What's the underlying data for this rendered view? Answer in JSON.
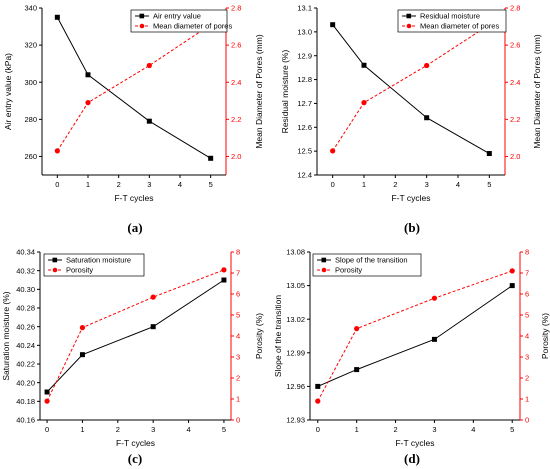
{
  "colors": {
    "primary": "#000000",
    "secondary": "#ff0000"
  },
  "chart_data": [
    {
      "type": "line",
      "panel_label": "(a)",
      "xlabel": "F-T cycles",
      "x": [
        0,
        1,
        3,
        5
      ],
      "xlim": [
        -0.5,
        5.5
      ],
      "xticks": [
        0,
        1,
        2,
        3,
        4,
        5
      ],
      "ylabel": "Air entry value (kPa)",
      "ylim": [
        250,
        340
      ],
      "yticks": [
        260,
        280,
        300,
        320,
        340
      ],
      "y_decimals": 0,
      "y2label": "Mean Diameter of Pores (mm)",
      "y2lim": [
        1.9,
        2.8
      ],
      "y2ticks": [
        2.0,
        2.2,
        2.4,
        2.6,
        2.8
      ],
      "y2_decimals": 1,
      "series": [
        {
          "name": "Air entry value",
          "axis": "left",
          "color": "#000000",
          "marker": "square",
          "dashed": false,
          "values": [
            335,
            304,
            279,
            259
          ]
        },
        {
          "name": "Mean diameter of pores",
          "axis": "right",
          "color": "#ff0000",
          "marker": "circle",
          "dashed": true,
          "values": [
            2.03,
            2.29,
            2.49,
            2.71
          ]
        }
      ],
      "legend": "top-right"
    },
    {
      "type": "line",
      "panel_label": "(b)",
      "xlabel": "F-T cycles",
      "x": [
        0,
        1,
        3,
        5
      ],
      "xlim": [
        -0.5,
        5.5
      ],
      "xticks": [
        0,
        1,
        2,
        3,
        4,
        5
      ],
      "ylabel": "Residual moisture (%)",
      "ylim": [
        12.4,
        13.1
      ],
      "yticks": [
        12.4,
        12.5,
        12.6,
        12.7,
        12.8,
        12.9,
        13.0,
        13.1
      ],
      "y_decimals": 1,
      "y2label": "Mean Diameter of Pores (mm)",
      "y2lim": [
        1.9,
        2.8
      ],
      "y2ticks": [
        2.0,
        2.2,
        2.4,
        2.6,
        2.8
      ],
      "y2_decimals": 1,
      "series": [
        {
          "name": "Residual moisture",
          "axis": "left",
          "color": "#000000",
          "marker": "square",
          "dashed": false,
          "values": [
            13.03,
            12.86,
            12.64,
            12.49
          ]
        },
        {
          "name": "Mean diameter of pores",
          "axis": "right",
          "color": "#ff0000",
          "marker": "circle",
          "dashed": true,
          "values": [
            2.03,
            2.29,
            2.49,
            2.71
          ]
        }
      ],
      "legend": "top-right"
    },
    {
      "type": "line",
      "panel_label": "(c)",
      "xlabel": "F-T cycles",
      "x": [
        0,
        1,
        3,
        5
      ],
      "xlim": [
        -0.2,
        5.2
      ],
      "xticks": [
        0,
        1,
        2,
        3,
        4,
        5
      ],
      "ylabel": "Saturation moisture (%)",
      "ylim": [
        40.16,
        40.34
      ],
      "yticks": [
        40.16,
        40.18,
        40.2,
        40.22,
        40.24,
        40.26,
        40.28,
        40.3,
        40.32,
        40.34
      ],
      "y_decimals": 2,
      "y2label": "Porosity (%)",
      "y2lim": [
        0,
        8
      ],
      "y2ticks": [
        0,
        1,
        2,
        3,
        4,
        5,
        6,
        7,
        8
      ],
      "y2_decimals": 0,
      "series": [
        {
          "name": "Saturation moisture",
          "axis": "left",
          "color": "#000000",
          "marker": "square",
          "dashed": false,
          "values": [
            40.19,
            40.23,
            40.26,
            40.31
          ]
        },
        {
          "name": "Porosity",
          "axis": "right",
          "color": "#ff0000",
          "marker": "circle",
          "dashed": true,
          "values": [
            0.9,
            4.4,
            5.85,
            7.15
          ]
        }
      ],
      "legend": "top-left"
    },
    {
      "type": "line",
      "panel_label": "(d)",
      "xlabel": "F-T cycles",
      "x": [
        0,
        1,
        3,
        5
      ],
      "xlim": [
        -0.2,
        5.2
      ],
      "xticks": [
        0,
        1,
        2,
        3,
        4,
        5
      ],
      "ylabel": "Slope of the transition",
      "ylim": [
        12.93,
        13.08
      ],
      "yticks": [
        12.93,
        12.96,
        12.99,
        13.02,
        13.05,
        13.08
      ],
      "y_decimals": 2,
      "y2label": "Porosity (%)",
      "y2lim": [
        0,
        8
      ],
      "y2ticks": [
        0,
        1,
        2,
        3,
        4,
        5,
        6,
        7,
        8
      ],
      "y2_decimals": 0,
      "series": [
        {
          "name": "Slope of the transition",
          "axis": "left",
          "color": "#000000",
          "marker": "square",
          "dashed": false,
          "values": [
            12.96,
            12.975,
            13.002,
            13.05
          ]
        },
        {
          "name": "Porosity",
          "axis": "right",
          "color": "#ff0000",
          "marker": "circle",
          "dashed": true,
          "values": [
            0.9,
            4.35,
            5.8,
            7.1
          ]
        }
      ],
      "legend": "top-left"
    }
  ]
}
